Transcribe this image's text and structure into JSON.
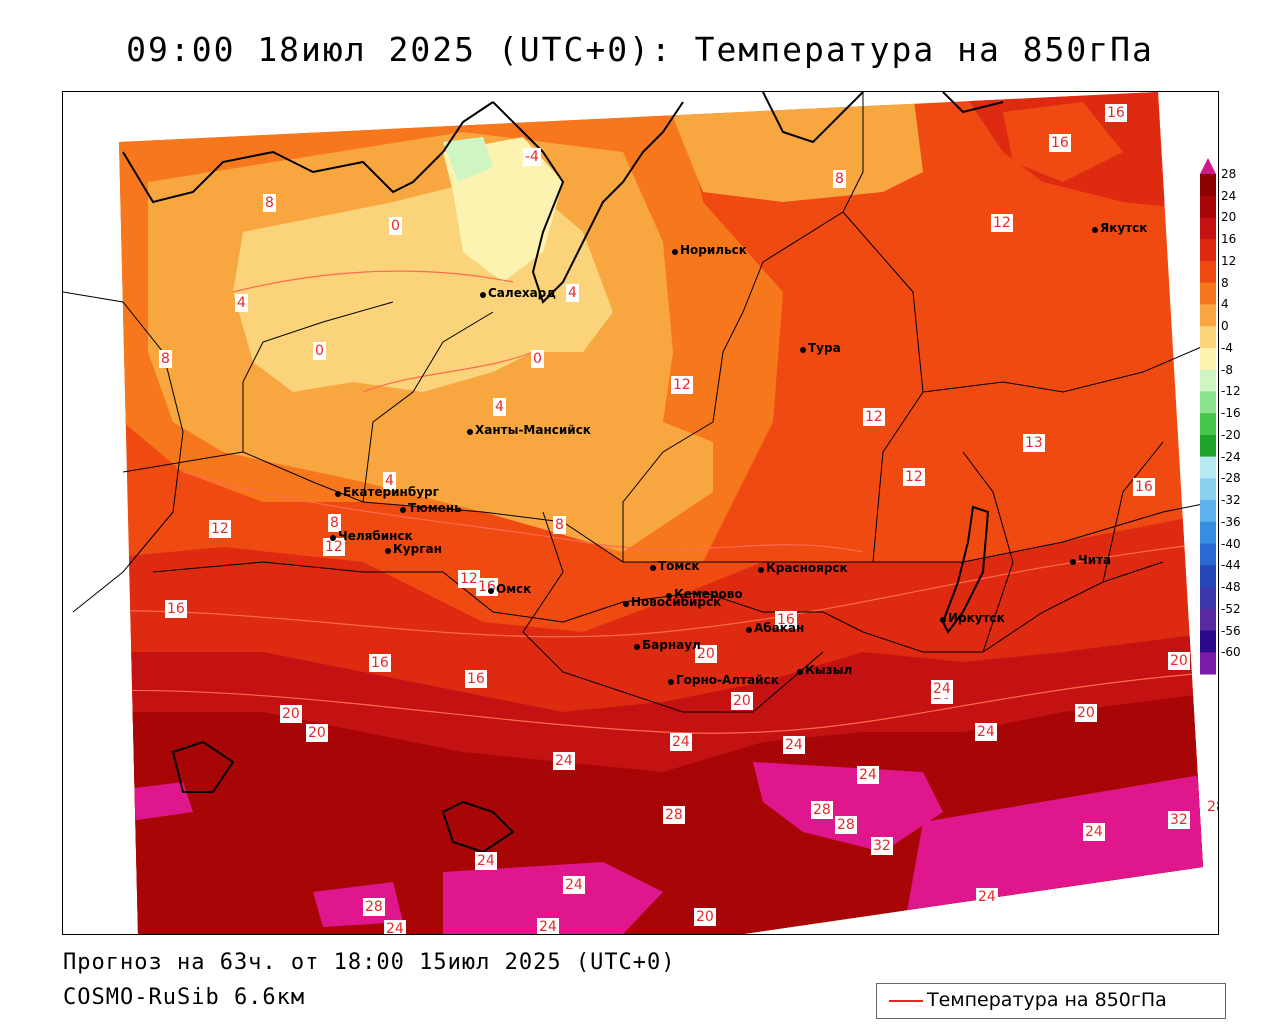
{
  "title": "09:00 18июл 2025 (UTC+0): Температура на 850гПа",
  "footer": {
    "forecast": "Прогноз на 63ч. от 18:00 15июл 2025 (UTC+0)",
    "model": "COSMO-RuSib 6.6км"
  },
  "legend": {
    "label": "Температура на 850гПа",
    "line_color": "#e82828"
  },
  "colorbar": {
    "levels": [
      "28",
      "24",
      "20",
      "16",
      "12",
      "8",
      "4",
      "0",
      "-4",
      "-8",
      "-12",
      "-16",
      "-20",
      "-24",
      "-28",
      "-32",
      "-36",
      "-40",
      "-44",
      "-48",
      "-52",
      "-56",
      "-60"
    ],
    "colors": [
      "#8b0000",
      "#a80606",
      "#c41212",
      "#dd2a10",
      "#ee4a12",
      "#f7781c",
      "#f8a640",
      "#fbd37a",
      "#fdf3b0",
      "#cef5c2",
      "#8ae48c",
      "#48c84a",
      "#1ea52a",
      "#b8e8f2",
      "#8cd0f0",
      "#5cb2ec",
      "#3a8ee2",
      "#2a6ad2",
      "#2448b8",
      "#3a38a8",
      "#5a2aa0",
      "#2a0a8a",
      "#7a1aa8"
    ]
  },
  "cities": [
    {
      "name": "Норильск"
    },
    {
      "name": "Якутск"
    },
    {
      "name": "Салехард"
    },
    {
      "name": "Тура"
    },
    {
      "name": "Ханты-Мансийск"
    },
    {
      "name": "Екатеринбург"
    },
    {
      "name": "Тюмень"
    },
    {
      "name": "Челябинск"
    },
    {
      "name": "Курган"
    },
    {
      "name": "Омск"
    },
    {
      "name": "Новосибирск"
    },
    {
      "name": "Томск"
    },
    {
      "name": "Кемерово"
    },
    {
      "name": "Красноярск"
    },
    {
      "name": "Абакан"
    },
    {
      "name": "Барнаул"
    },
    {
      "name": "Горно-Алтайск"
    },
    {
      "name": "Кызыл"
    },
    {
      "name": "Иркутск"
    },
    {
      "name": "Чита"
    }
  ],
  "contour_labels": [
    "16",
    "16",
    "8",
    "12",
    "8",
    "-4",
    "0",
    "4",
    "0",
    "0",
    "4",
    "8",
    "4",
    "12",
    "4",
    "8",
    "8",
    "12",
    "12",
    "12",
    "13",
    "16",
    "12",
    "12",
    "16",
    "16",
    "16",
    "16",
    "20",
    "20",
    "20",
    "24",
    "20",
    "20",
    "24",
    "24",
    "24",
    "20",
    "20",
    "24",
    "24",
    "28",
    "28",
    "24",
    "32",
    "28",
    "32",
    "28",
    "24",
    "24",
    "24",
    "20",
    "24",
    "28",
    "24",
    "16"
  ]
}
